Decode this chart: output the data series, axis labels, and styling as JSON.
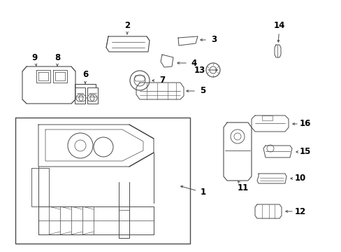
{
  "bg_color": "#ffffff",
  "line_color": "#4a4a4a",
  "text_color": "#000000",
  "fig_width": 4.89,
  "fig_height": 3.6,
  "dpi": 100
}
